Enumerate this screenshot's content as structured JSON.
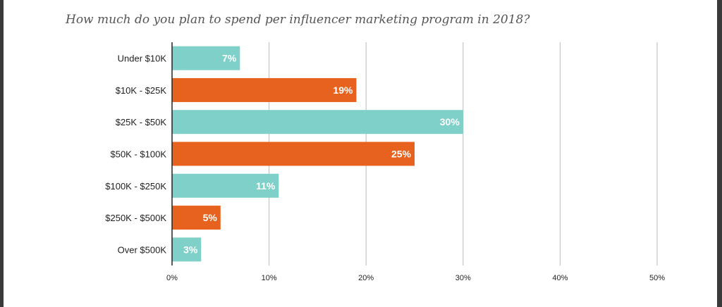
{
  "chart_data": {
    "type": "bar",
    "orientation": "horizontal",
    "title": "How much do you plan to spend per influencer marketing program in 2018?",
    "categories": [
      "Under $10K",
      "$10K - $25K",
      "$25K - $50K",
      "$50K - $100K",
      "$100K - $250K",
      "$250K - $500K",
      "Over $500K"
    ],
    "values": [
      7,
      19,
      30,
      25,
      11,
      5,
      3
    ],
    "value_labels": [
      "7%",
      "19%",
      "30%",
      "25%",
      "11%",
      "5%",
      "3%"
    ],
    "bar_colors": [
      "#7fd0c8",
      "#e8621f",
      "#7fd0c8",
      "#e8621f",
      "#7fd0c8",
      "#e8621f",
      "#7fd0c8"
    ],
    "xlim": [
      0,
      50
    ],
    "x_ticks": [
      0,
      10,
      20,
      30,
      40,
      50
    ],
    "x_tick_labels": [
      "0%",
      "10%",
      "20%",
      "30%",
      "40%",
      "50%"
    ],
    "grid": "vertical",
    "xlabel": "",
    "ylabel": ""
  },
  "colors": {
    "teal": "#7fd0c8",
    "orange": "#e8621f",
    "grid": "#bbbbbb",
    "axis": "#222222"
  }
}
